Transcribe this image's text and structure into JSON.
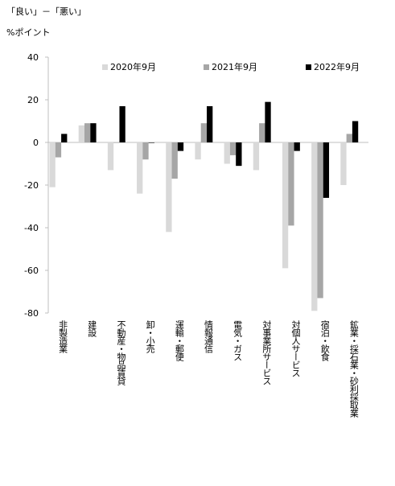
{
  "chart_data": {
    "type": "bar",
    "title": "「良い」－「悪い」",
    "ylabel": "%ポイント",
    "xlabel": "",
    "ylim": [
      -80,
      40
    ],
    "yticks": [
      40,
      20,
      0,
      -20,
      -40,
      -60,
      -80
    ],
    "grid": false,
    "legend_position": "top",
    "categories": [
      "非製造業",
      "建設",
      "不動産・物品賃貸",
      "卸・小売",
      "運輸・郵便",
      "情報通信",
      "電気・ガス",
      "対事業所サービス",
      "対個人サービス",
      "宿泊・飲食",
      "鉱業・採石業・砂利採取業"
    ],
    "series": [
      {
        "name": "2020年9月",
        "color": "#d9d9d9",
        "values": [
          -21,
          8,
          -13,
          -24,
          -42,
          -8,
          -10,
          -13,
          -59,
          -79,
          -20
        ]
      },
      {
        "name": "2021年9月",
        "color": "#a6a6a6",
        "values": [
          -7,
          9,
          0,
          -8,
          -17,
          9,
          -6,
          9,
          -39,
          -73,
          4
        ]
      },
      {
        "name": "2022年9月",
        "color": "#000000",
        "values": [
          4,
          9,
          17,
          0,
          -4,
          17,
          -11,
          19,
          -4,
          -26,
          10
        ]
      }
    ]
  }
}
